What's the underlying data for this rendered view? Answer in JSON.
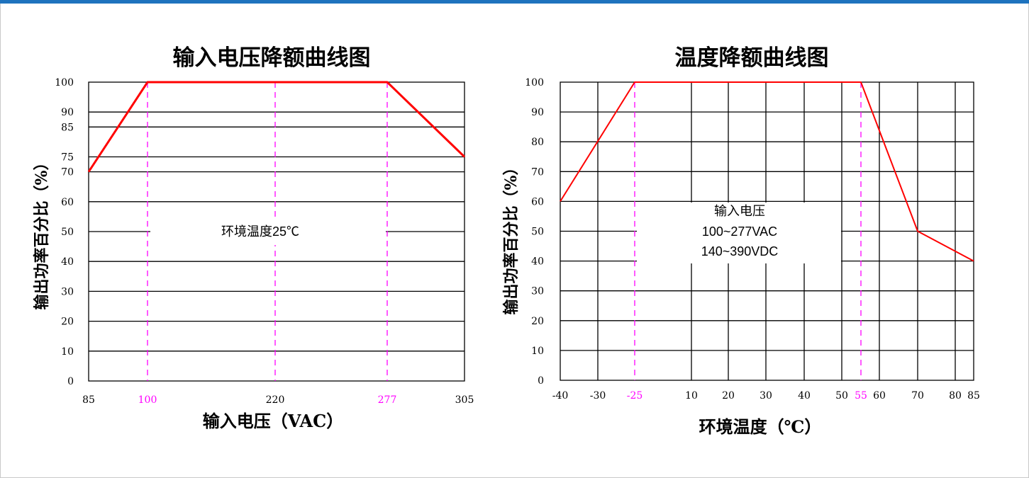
{
  "chart_data": [
    {
      "type": "line",
      "title": "输入电压降额曲线图",
      "xlabel": "输入电压（VAC）",
      "ylabel": "输出功率百分比（%）",
      "x_ticks": [
        "85",
        "100",
        "220",
        "277",
        "305"
      ],
      "x_highlight_ticks": [
        "100",
        "277"
      ],
      "y_ticks": [
        "0",
        "10",
        "20",
        "30",
        "40",
        "50",
        "60",
        "70",
        "75",
        "85",
        "90",
        "100"
      ],
      "xlim": [
        85,
        305
      ],
      "ylim": [
        0,
        100
      ],
      "grid": true,
      "series": [
        {
          "x": [
            85,
            100,
            277,
            305
          ],
          "y": [
            70,
            100,
            100,
            75
          ],
          "color": "#ff0000"
        }
      ],
      "reference_lines_x": [
        100,
        220,
        277
      ],
      "annotations": [
        {
          "text": "环境温度25℃"
        }
      ]
    },
    {
      "type": "line",
      "title": "温度降额曲线图",
      "xlabel": "环境温度（℃）",
      "ylabel": "输出功率百分比（%）",
      "x_ticks": [
        "-40",
        "-30",
        "-25",
        "10",
        "20",
        "30",
        "40",
        "50",
        "55",
        "60",
        "70",
        "80",
        "85"
      ],
      "x_highlight_ticks": [
        "-25",
        "55"
      ],
      "y_ticks": [
        "0",
        "10",
        "20",
        "30",
        "40",
        "50",
        "60",
        "70",
        "80",
        "90",
        "100"
      ],
      "xlim": [
        -40,
        85
      ],
      "ylim": [
        0,
        100
      ],
      "grid": true,
      "series": [
        {
          "x": [
            -40,
            -25,
            55,
            70,
            85
          ],
          "y": [
            60,
            100,
            100,
            50,
            40
          ],
          "color": "#ff0000"
        }
      ],
      "reference_lines_x": [
        -25,
        55
      ],
      "annotations": [
        {
          "lines": [
            "输入电压",
            "100~277VAC",
            "140~390VDC"
          ]
        }
      ]
    }
  ],
  "colors": {
    "curve": "#ff0000",
    "reference": "#ff00ff",
    "grid": "#000000",
    "accent_bar": "#1e73be"
  }
}
